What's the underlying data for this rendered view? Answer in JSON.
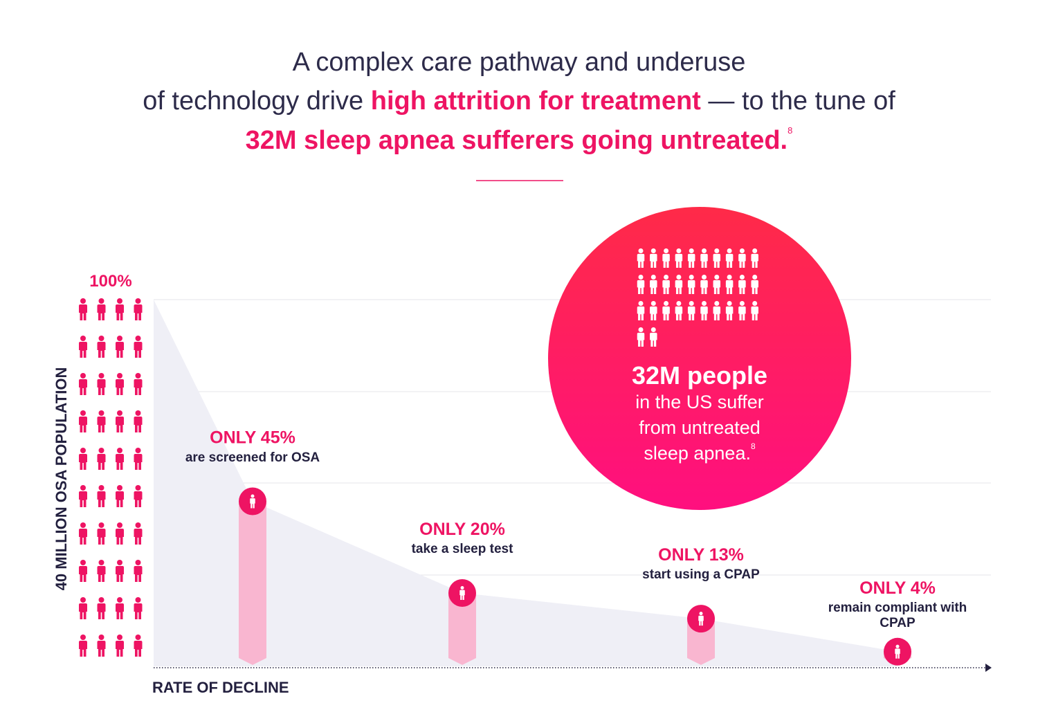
{
  "title": {
    "line1": "A complex care pathway and underuse",
    "line2_start": "of technology drive",
    "line2_highlight": "high attrition for treatment",
    "line2_end": "— to the tune of",
    "line3": "32M sleep apnea sufferers going untreated.",
    "footnote": "8"
  },
  "chart_data": {
    "type": "area",
    "ylabel": "40 MILLION OSA POPULATION",
    "xlabel": "RATE OF DECLINE",
    "categories": [
      null,
      "are screened for OSA",
      "take a sleep test",
      "start using a CPAP",
      "remain compliant with CPAP"
    ],
    "values": [
      100,
      45,
      20,
      13,
      4
    ],
    "value_labels": [
      "100%",
      "ONLY 45%",
      "ONLY 20%",
      "ONLY 13%",
      "ONLY 4%"
    ],
    "ylim": [
      0,
      100
    ],
    "color": "#ee1463",
    "bar_color": "#f9b6d0",
    "area_color": "#efeff6"
  },
  "callout": {
    "headline": "32M people",
    "lines": [
      "in the US suffer",
      "from untreated",
      "sleep apnea."
    ],
    "footnote": "8"
  }
}
